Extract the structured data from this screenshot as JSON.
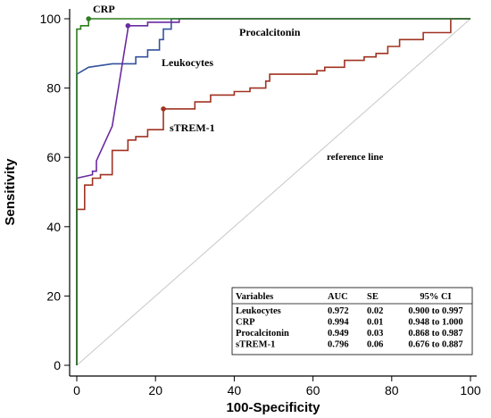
{
  "chart_data": {
    "type": "line",
    "xlabel": "100-Specificity",
    "ylabel": "Sensitivity",
    "xlim": [
      0,
      100
    ],
    "ylim": [
      0,
      100
    ],
    "xticks": [
      "0",
      "20",
      "40",
      "60",
      "80",
      "100"
    ],
    "yticks": [
      "0",
      "20",
      "40",
      "60",
      "80",
      "100"
    ],
    "grid": false,
    "reference_line": {
      "label": "reference line",
      "x": [
        0,
        100
      ],
      "y": [
        0,
        100
      ],
      "color": "#c8c8c8"
    },
    "series": [
      {
        "name": "CRP",
        "color": "#2e7d1e",
        "x": [
          0,
          0,
          1,
          1,
          3,
          3,
          100
        ],
        "y": [
          0,
          97,
          97,
          98,
          98,
          100,
          100
        ],
        "marker": [
          3,
          100
        ]
      },
      {
        "name": "Procalcitonin",
        "color": "#6a2aa0",
        "x": [
          0,
          0,
          4,
          4,
          5,
          5,
          9,
          13,
          13,
          14,
          18,
          18,
          26,
          26,
          100
        ],
        "y": [
          0,
          54,
          55,
          56,
          56,
          59,
          69,
          97,
          98,
          98,
          98,
          99,
          99,
          100,
          100
        ],
        "marker": [
          13,
          98
        ]
      },
      {
        "name": "Leukocytes",
        "color": "#34529c",
        "x": [
          0,
          0,
          3,
          9,
          15,
          15,
          18,
          18,
          21,
          21,
          22,
          22,
          24,
          24,
          100
        ],
        "y": [
          0,
          84,
          86,
          87,
          87,
          89,
          89,
          91,
          91,
          94,
          94,
          97,
          97,
          100,
          100
        ],
        "marker": null
      },
      {
        "name": "sTREM-1",
        "color": "#a03322",
        "x": [
          0,
          0,
          2,
          2,
          4,
          4,
          6,
          6,
          9,
          9,
          13,
          13,
          15,
          15,
          18,
          18,
          22,
          22,
          30,
          30,
          34,
          34,
          40,
          40,
          44,
          44,
          48,
          48,
          49,
          49,
          54,
          54,
          61,
          61,
          63,
          63,
          68,
          68,
          73,
          73,
          76,
          76,
          79,
          79,
          82,
          82,
          88,
          88,
          95,
          95,
          100
        ],
        "y": [
          0,
          45,
          45,
          52,
          52,
          54,
          54,
          55,
          55,
          62,
          62,
          65,
          65,
          66,
          66,
          68,
          68,
          74,
          74,
          76,
          76,
          78,
          78,
          79,
          79,
          80,
          80,
          82,
          82,
          84,
          84,
          84,
          84,
          85,
          85,
          86,
          86,
          88,
          88,
          89,
          89,
          90,
          90,
          92,
          92,
          94,
          94,
          96,
          96,
          100,
          100
        ],
        "marker": [
          22,
          74
        ]
      }
    ],
    "labels": {
      "crp": "CRP",
      "procalcitonin": "Procalcitonin",
      "leukocytes": "Leukocytes",
      "strem": "sTREM-1",
      "reference": "reference line"
    },
    "table": {
      "headers": [
        "Variables",
        "AUC",
        "SE",
        "95%  CI"
      ],
      "rows": [
        [
          "Leukocytes",
          "0.972",
          "0.02",
          "0.900  to  0.997"
        ],
        [
          "CRP",
          "0.994",
          "0.01",
          "0.948  to  1.000"
        ],
        [
          "Procalcitonin",
          "0.949",
          "0.03",
          "0.868  to  0.987"
        ],
        [
          "sTREM-1",
          "0.796",
          "0.06",
          "0.676  to  0.887"
        ]
      ]
    }
  }
}
